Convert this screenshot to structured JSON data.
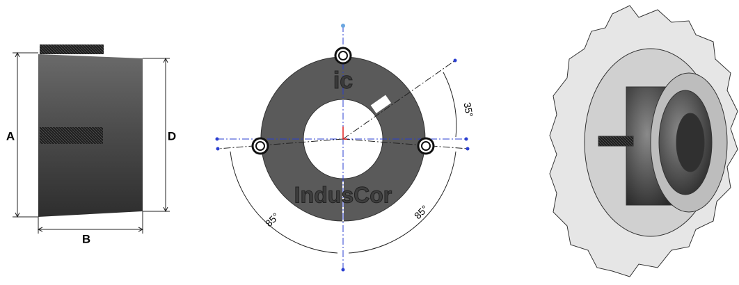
{
  "side_view": {
    "dimensions": {
      "a": "A",
      "b": "B",
      "d": "D"
    }
  },
  "front_view": {
    "logo": "ic",
    "brand": "IndusCor",
    "angles": [
      "35°",
      "85°",
      "85°"
    ]
  }
}
